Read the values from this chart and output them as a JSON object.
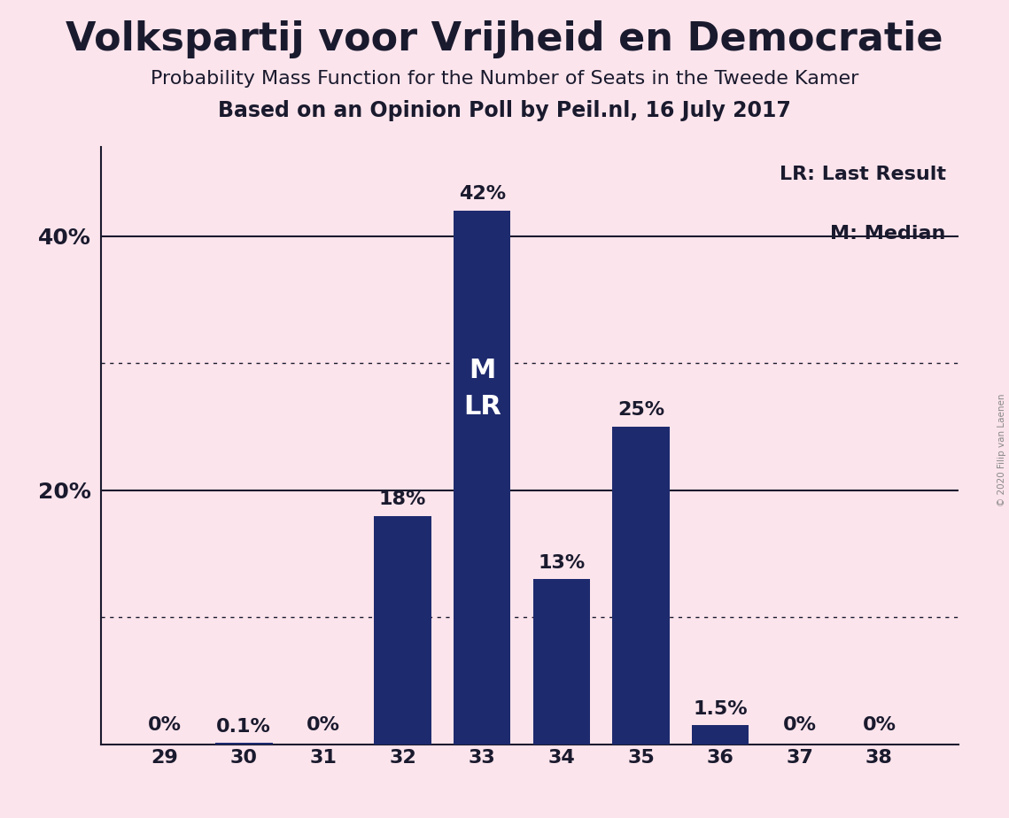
{
  "title": "Volkspartij voor Vrijheid en Democratie",
  "subtitle1": "Probability Mass Function for the Number of Seats in the Tweede Kamer",
  "subtitle2": "Based on an Opinion Poll by Peil.nl, 16 July 2017",
  "copyright": "© 2020 Filip van Laenen",
  "seats": [
    29,
    30,
    31,
    32,
    33,
    34,
    35,
    36,
    37,
    38
  ],
  "probabilities": [
    0.0,
    0.1,
    0.0,
    18.0,
    42.0,
    13.0,
    25.0,
    1.5,
    0.0,
    0.0
  ],
  "bar_color": "#1e2a6e",
  "background_color": "#fce4ec",
  "bar_labels": [
    "0%",
    "0.1%",
    "0%",
    "18%",
    "42%",
    "13%",
    "25%",
    "1.5%",
    "0%",
    "0%"
  ],
  "median_seat": 33,
  "last_result_seat": 33,
  "legend_lr": "LR: Last Result",
  "legend_m": "M: Median",
  "ylim": [
    0,
    47
  ],
  "solid_yticks": [
    20,
    40
  ],
  "dotted_yticks": [
    10,
    30
  ],
  "axis_color": "#1a1a2e",
  "text_color": "#1a1a2e",
  "title_fontsize": 32,
  "subtitle1_fontsize": 16,
  "subtitle2_fontsize": 17,
  "label_fontsize": 16,
  "tick_fontsize": 16,
  "annotation_fontsize": 16,
  "inbar_fontsize": 22,
  "above_bar_threshold": 3.0
}
